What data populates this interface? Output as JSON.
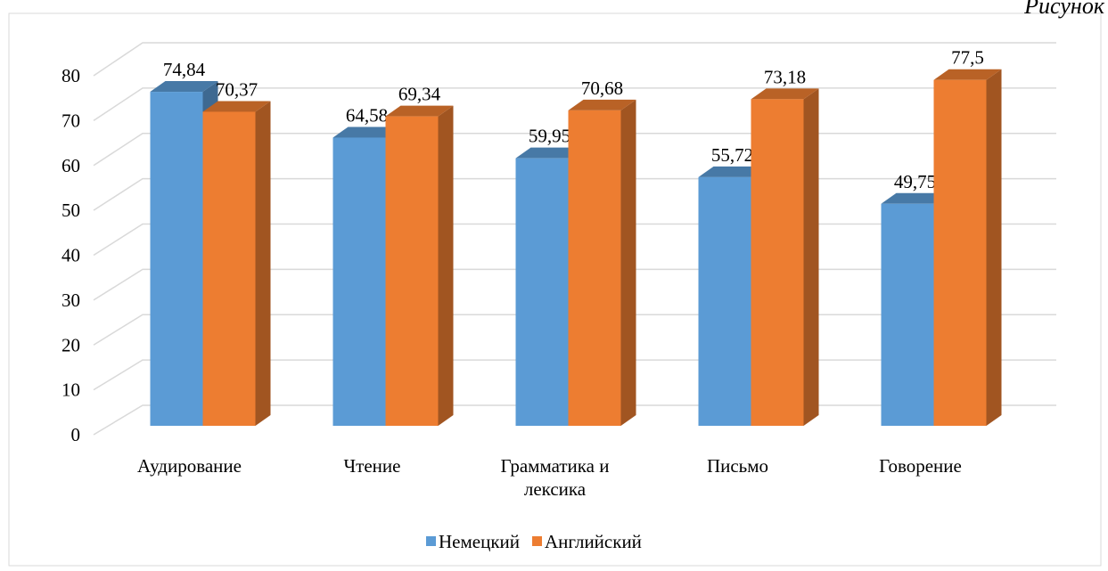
{
  "annotation": "Рисунок",
  "chart_data": {
    "type": "bar3d",
    "categories": [
      "Аудирование",
      "Чтение",
      "Грамматика и лексика",
      "Письмо",
      "Говорение"
    ],
    "series": [
      {
        "name": "Немецкий",
        "color": "#5b9bd5",
        "values": [
          74.84,
          64.58,
          59.95,
          55.72,
          49.75
        ],
        "value_labels": [
          "74,84",
          "64,58",
          "59,95",
          "55,72",
          "49,75"
        ]
      },
      {
        "name": "Английский",
        "color": "#ed7d31",
        "values": [
          70.37,
          69.34,
          70.68,
          73.18,
          77.5
        ],
        "value_labels": [
          "70,37",
          "69,34",
          "70,68",
          "73,18",
          "77,5"
        ]
      }
    ],
    "ylim": [
      0,
      80
    ],
    "yticks": [
      0,
      10,
      20,
      30,
      40,
      50,
      60,
      70,
      80
    ],
    "grid": true,
    "legend": "bottom"
  }
}
